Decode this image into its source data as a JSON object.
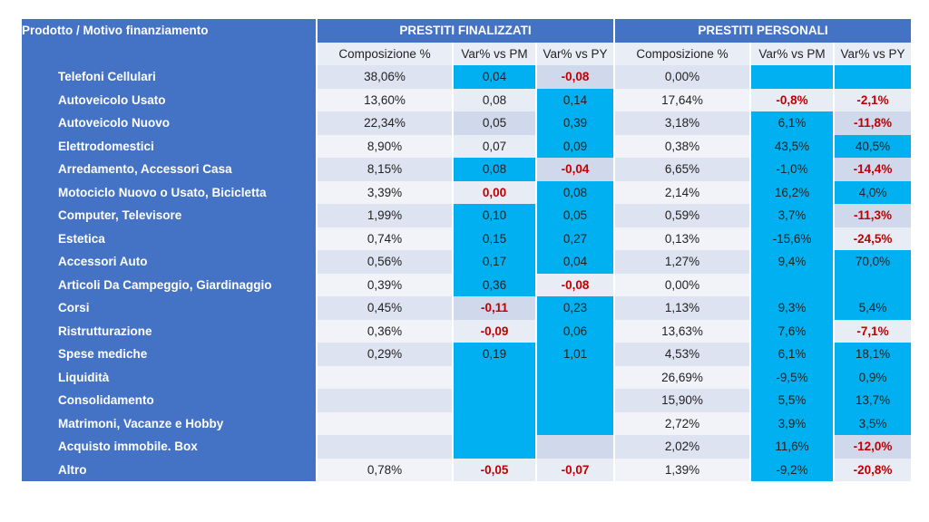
{
  "header": {
    "product_label": "Prodotto  / Motivo finanziamento",
    "group1": "PRESTITI FINALIZZATI",
    "group2": "PRESTITI PERSONALI"
  },
  "subheaders": [
    "Composizione %",
    "Var% vs PM",
    "Var% vs PY",
    "Composizione %",
    "Var% vs PM",
    "Var% vs PY"
  ],
  "rows": [
    {
      "label": "Telefoni Cellulari",
      "cells": [
        {
          "v": "38,06%",
          "hl": false,
          "neg": false
        },
        {
          "v": "0,04",
          "hl": true,
          "neg": false
        },
        {
          "v": "-0,08",
          "hl": false,
          "neg": true
        },
        {
          "v": "0,00%",
          "hl": false,
          "neg": false
        },
        {
          "v": "",
          "hl": true,
          "neg": false
        },
        {
          "v": "",
          "hl": true,
          "neg": false
        }
      ]
    },
    {
      "label": "Autoveicolo  Usato",
      "cells": [
        {
          "v": "13,60%",
          "hl": false,
          "neg": false
        },
        {
          "v": "0,08",
          "hl": false,
          "neg": false
        },
        {
          "v": "0,14",
          "hl": true,
          "neg": false
        },
        {
          "v": "17,64%",
          "hl": false,
          "neg": false
        },
        {
          "v": "-0,8%",
          "hl": false,
          "neg": true
        },
        {
          "v": "-2,1%",
          "hl": false,
          "neg": true
        }
      ]
    },
    {
      "label": "Autoveicolo  Nuovo",
      "cells": [
        {
          "v": "22,34%",
          "hl": false,
          "neg": false
        },
        {
          "v": "0,05",
          "hl": false,
          "neg": false
        },
        {
          "v": "0,39",
          "hl": true,
          "neg": false
        },
        {
          "v": "3,18%",
          "hl": false,
          "neg": false
        },
        {
          "v": "6,1%",
          "hl": true,
          "neg": false
        },
        {
          "v": "-11,8%",
          "hl": false,
          "neg": true
        }
      ]
    },
    {
      "label": "Elettrodomestici",
      "cells": [
        {
          "v": "8,90%",
          "hl": false,
          "neg": false
        },
        {
          "v": "0,07",
          "hl": false,
          "neg": false
        },
        {
          "v": "0,09",
          "hl": true,
          "neg": false
        },
        {
          "v": "0,38%",
          "hl": false,
          "neg": false
        },
        {
          "v": "43,5%",
          "hl": true,
          "neg": false
        },
        {
          "v": "40,5%",
          "hl": true,
          "neg": false
        }
      ]
    },
    {
      "label": "Arredamento,  Accessori Casa",
      "cells": [
        {
          "v": "8,15%",
          "hl": false,
          "neg": false
        },
        {
          "v": "0,08",
          "hl": true,
          "neg": false
        },
        {
          "v": "-0,04",
          "hl": false,
          "neg": true
        },
        {
          "v": "6,65%",
          "hl": false,
          "neg": false
        },
        {
          "v": "-1,0%",
          "hl": true,
          "neg": false
        },
        {
          "v": "-14,4%",
          "hl": false,
          "neg": true
        }
      ]
    },
    {
      "label": "Motociclo  Nuovo o Usato,  Bicicletta",
      "cells": [
        {
          "v": "3,39%",
          "hl": false,
          "neg": false
        },
        {
          "v": "0,00",
          "hl": false,
          "neg": true
        },
        {
          "v": "0,08",
          "hl": true,
          "neg": false
        },
        {
          "v": "2,14%",
          "hl": false,
          "neg": false
        },
        {
          "v": "16,2%",
          "hl": true,
          "neg": false
        },
        {
          "v": "4,0%",
          "hl": true,
          "neg": false
        }
      ]
    },
    {
      "label": "Computer,  Televisore",
      "cells": [
        {
          "v": "1,99%",
          "hl": false,
          "neg": false
        },
        {
          "v": "0,10",
          "hl": true,
          "neg": false
        },
        {
          "v": "0,05",
          "hl": true,
          "neg": false
        },
        {
          "v": "0,59%",
          "hl": false,
          "neg": false
        },
        {
          "v": "3,7%",
          "hl": true,
          "neg": false
        },
        {
          "v": "-11,3%",
          "hl": false,
          "neg": true
        }
      ]
    },
    {
      "label": "Estetica",
      "cells": [
        {
          "v": "0,74%",
          "hl": false,
          "neg": false
        },
        {
          "v": "0,15",
          "hl": true,
          "neg": false
        },
        {
          "v": "0,27",
          "hl": true,
          "neg": false
        },
        {
          "v": "0,13%",
          "hl": false,
          "neg": false
        },
        {
          "v": "-15,6%",
          "hl": true,
          "neg": false
        },
        {
          "v": "-24,5%",
          "hl": false,
          "neg": true
        }
      ]
    },
    {
      "label": "Accessori Auto",
      "cells": [
        {
          "v": "0,56%",
          "hl": false,
          "neg": false
        },
        {
          "v": "0,17",
          "hl": true,
          "neg": false
        },
        {
          "v": "0,04",
          "hl": true,
          "neg": false
        },
        {
          "v": "1,27%",
          "hl": false,
          "neg": false
        },
        {
          "v": "9,4%",
          "hl": true,
          "neg": false
        },
        {
          "v": "70,0%",
          "hl": true,
          "neg": false
        }
      ]
    },
    {
      "label": "Articoli Da Campeggio,  Giardinaggio",
      "cells": [
        {
          "v": "0,39%",
          "hl": false,
          "neg": false
        },
        {
          "v": "0,36",
          "hl": true,
          "neg": false
        },
        {
          "v": "-0,08",
          "hl": false,
          "neg": true
        },
        {
          "v": "0,00%",
          "hl": false,
          "neg": false
        },
        {
          "v": "",
          "hl": true,
          "neg": false
        },
        {
          "v": "",
          "hl": true,
          "neg": false
        }
      ]
    },
    {
      "label": "Corsi",
      "cells": [
        {
          "v": "0,45%",
          "hl": false,
          "neg": false
        },
        {
          "v": "-0,11",
          "hl": false,
          "neg": true
        },
        {
          "v": "0,23",
          "hl": true,
          "neg": false
        },
        {
          "v": "1,13%",
          "hl": false,
          "neg": false
        },
        {
          "v": "9,3%",
          "hl": true,
          "neg": false
        },
        {
          "v": "5,4%",
          "hl": true,
          "neg": false
        }
      ]
    },
    {
      "label": "Ristrutturazione",
      "cells": [
        {
          "v": "0,36%",
          "hl": false,
          "neg": false
        },
        {
          "v": "-0,09",
          "hl": false,
          "neg": true
        },
        {
          "v": "0,06",
          "hl": true,
          "neg": false
        },
        {
          "v": "13,63%",
          "hl": false,
          "neg": false
        },
        {
          "v": "7,6%",
          "hl": true,
          "neg": false
        },
        {
          "v": "-7,1%",
          "hl": false,
          "neg": true
        }
      ]
    },
    {
      "label": "Spese mediche",
      "cells": [
        {
          "v": "0,29%",
          "hl": false,
          "neg": false
        },
        {
          "v": "0,19",
          "hl": true,
          "neg": false
        },
        {
          "v": "1,01",
          "hl": true,
          "neg": false
        },
        {
          "v": "4,53%",
          "hl": false,
          "neg": false
        },
        {
          "v": "6,1%",
          "hl": true,
          "neg": false
        },
        {
          "v": "18,1%",
          "hl": true,
          "neg": false
        }
      ]
    },
    {
      "label": "Liquidità",
      "cells": [
        {
          "v": "",
          "hl": false,
          "neg": false
        },
        {
          "v": "",
          "hl": true,
          "neg": false
        },
        {
          "v": "",
          "hl": true,
          "neg": false
        },
        {
          "v": "26,69%",
          "hl": false,
          "neg": false
        },
        {
          "v": "-9,5%",
          "hl": true,
          "neg": false
        },
        {
          "v": "0,9%",
          "hl": true,
          "neg": false
        }
      ]
    },
    {
      "label": "Consolidamento",
      "cells": [
        {
          "v": "",
          "hl": false,
          "neg": false
        },
        {
          "v": "",
          "hl": true,
          "neg": false
        },
        {
          "v": "",
          "hl": true,
          "neg": false
        },
        {
          "v": "15,90%",
          "hl": false,
          "neg": false
        },
        {
          "v": "5,5%",
          "hl": true,
          "neg": false
        },
        {
          "v": "13,7%",
          "hl": true,
          "neg": false
        }
      ]
    },
    {
      "label": "Matrimoni,  Vacanze e Hobby",
      "cells": [
        {
          "v": "",
          "hl": false,
          "neg": false
        },
        {
          "v": "",
          "hl": true,
          "neg": false
        },
        {
          "v": "",
          "hl": true,
          "neg": false
        },
        {
          "v": "2,72%",
          "hl": false,
          "neg": false
        },
        {
          "v": "3,9%",
          "hl": true,
          "neg": false
        },
        {
          "v": "3,5%",
          "hl": true,
          "neg": false
        }
      ]
    },
    {
      "label": "Acquisto immobile. Box",
      "cells": [
        {
          "v": "",
          "hl": false,
          "neg": false
        },
        {
          "v": "",
          "hl": true,
          "neg": false
        },
        {
          "v": "",
          "hl": false,
          "neg": false
        },
        {
          "v": "2,02%",
          "hl": false,
          "neg": false
        },
        {
          "v": "11,6%",
          "hl": true,
          "neg": false
        },
        {
          "v": "-12,0%",
          "hl": false,
          "neg": true
        }
      ]
    },
    {
      "label": "Altro",
      "cells": [
        {
          "v": "0,78%",
          "hl": false,
          "neg": false
        },
        {
          "v": "-0,05",
          "hl": false,
          "neg": true
        },
        {
          "v": "-0,07",
          "hl": false,
          "neg": true
        },
        {
          "v": "1,39%",
          "hl": false,
          "neg": false
        },
        {
          "v": "-9,2%",
          "hl": true,
          "neg": false
        },
        {
          "v": "-20,8%",
          "hl": false,
          "neg": true
        }
      ]
    }
  ],
  "colors": {
    "header_blue": "#4472c4",
    "highlight_cyan": "#00b0f0",
    "negative_red": "#c00000"
  }
}
